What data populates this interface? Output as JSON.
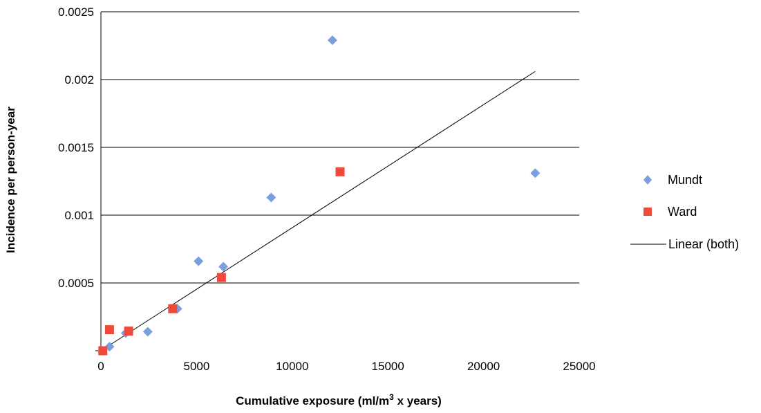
{
  "chart_data": {
    "type": "scatter",
    "xlabel": "Cumulative exposure (ml/m",
    "xlabel_sup": "3",
    "xlabel_tail": " x years)",
    "ylabel": "Incidence per person-year",
    "xlim": [
      0,
      25000
    ],
    "ylim": [
      0,
      0.0025
    ],
    "x_ticks": [
      {
        "value": 0,
        "label": "0"
      },
      {
        "value": 5000,
        "label": "5000"
      },
      {
        "value": 10000,
        "label": "10000"
      },
      {
        "value": 15000,
        "label": "15000"
      },
      {
        "value": 20000,
        "label": "20000"
      },
      {
        "value": 25000,
        "label": "25000"
      }
    ],
    "y_ticks": [
      {
        "value": 0.0005,
        "label": "0.0005"
      },
      {
        "value": 0.001,
        "label": "0.001"
      },
      {
        "value": 0.0015,
        "label": "0.0015"
      },
      {
        "value": 0.002,
        "label": "0.002"
      },
      {
        "value": 0.0025,
        "label": "0.0025"
      }
    ],
    "grid": {
      "horizontal": true,
      "vertical": false
    },
    "legend_position": "right",
    "series": [
      {
        "name": "Mundt",
        "marker": "diamond",
        "color": "#7B9FDE",
        "points": [
          {
            "x": 100,
            "y": 0.0
          },
          {
            "x": 450,
            "y": 3e-05
          },
          {
            "x": 1300,
            "y": 0.00013
          },
          {
            "x": 2450,
            "y": 0.00014
          },
          {
            "x": 4000,
            "y": 0.00031
          },
          {
            "x": 5100,
            "y": 0.00066
          },
          {
            "x": 6400,
            "y": 0.00062
          },
          {
            "x": 8900,
            "y": 0.00113
          },
          {
            "x": 12100,
            "y": 0.00229
          },
          {
            "x": 22700,
            "y": 0.00131
          }
        ]
      },
      {
        "name": "Ward",
        "marker": "square",
        "color": "#EF4A3C",
        "points": [
          {
            "x": 100,
            "y": 0.0
          },
          {
            "x": 450,
            "y": 0.000155
          },
          {
            "x": 1450,
            "y": 0.000145
          },
          {
            "x": 3750,
            "y": 0.00031
          },
          {
            "x": 6300,
            "y": 0.00054
          },
          {
            "x": 12500,
            "y": 0.00132
          }
        ]
      }
    ],
    "trendline": {
      "name": "Linear (both)",
      "color": "#000000",
      "x_start": 0,
      "y_start": 0.0,
      "x_end": 22700,
      "y_end": 0.00206
    }
  }
}
